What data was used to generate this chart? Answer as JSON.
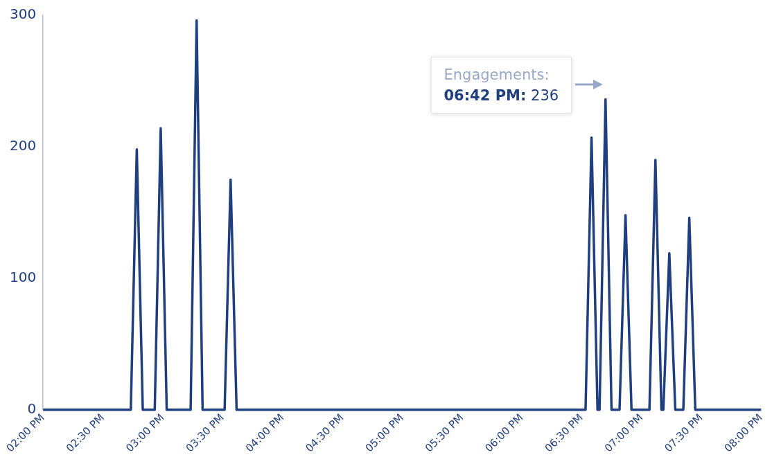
{
  "chart_data": {
    "type": "line",
    "x": [
      14,
      14.733,
      14.783,
      14.833,
      14.933,
      14.983,
      15.033,
      15.233,
      15.283,
      15.333,
      15.517,
      15.567,
      15.617,
      18.533,
      18.583,
      18.633,
      18.65,
      18.7,
      18.75,
      18.817,
      18.867,
      18.917,
      19.067,
      19.117,
      19.167,
      19.183,
      19.233,
      19.283,
      19.35,
      19.4,
      19.45,
      20
    ],
    "series": [
      {
        "color": "#1f3f7e",
        "values": [
          0,
          0,
          198,
          0,
          0,
          214,
          0,
          0,
          296,
          0,
          0,
          175,
          0,
          0,
          207,
          0,
          0,
          236,
          0,
          0,
          148,
          0,
          0,
          190,
          0,
          0,
          119,
          0,
          0,
          146,
          0,
          0
        ]
      }
    ],
    "xlim": [
      14,
      20
    ],
    "ylim": [
      0,
      300
    ],
    "xticks": [
      {
        "value": 14,
        "label": "02:00 PM"
      },
      {
        "value": 14.5,
        "label": "02:30 PM"
      },
      {
        "value": 15,
        "label": "03:00 PM"
      },
      {
        "value": 15.5,
        "label": "03:30 PM"
      },
      {
        "value": 16,
        "label": "04:00 PM"
      },
      {
        "value": 16.5,
        "label": "04:30 PM"
      },
      {
        "value": 17,
        "label": "05:00 PM"
      },
      {
        "value": 17.5,
        "label": "05:30 PM"
      },
      {
        "value": 18,
        "label": "06:00 PM"
      },
      {
        "value": 18.5,
        "label": "06:30 PM"
      },
      {
        "value": 19,
        "label": "07:00 PM"
      },
      {
        "value": 19.5,
        "label": "07:30 PM"
      },
      {
        "value": 20,
        "label": "08:00 PM"
      }
    ],
    "yticks": [
      0,
      100,
      200,
      300
    ],
    "annotations": [
      "Engagements:\n06:42 PM: 236"
    ],
    "grid": false,
    "legend": false,
    "line_style": "solid"
  }
}
